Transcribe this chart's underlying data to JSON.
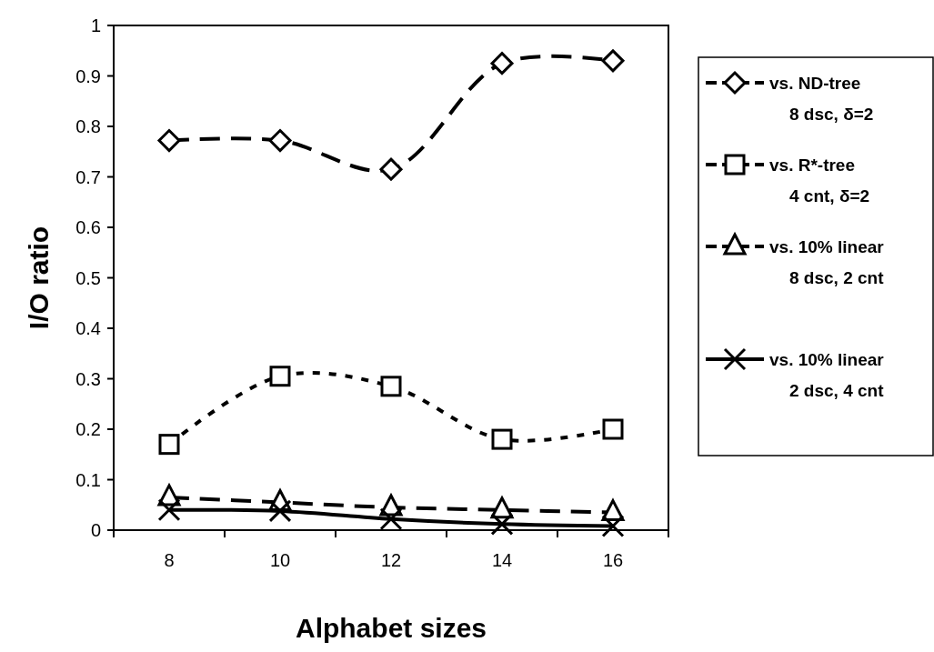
{
  "chart_data": {
    "type": "line",
    "xlabel": "Alphabet sizes",
    "ylabel": "I/O ratio",
    "categories": [
      "8",
      "10",
      "12",
      "14",
      "16"
    ],
    "ylim": [
      0,
      1
    ],
    "yticks": [
      0,
      0.1,
      0.2,
      0.3,
      0.4,
      0.5,
      0.6,
      0.7,
      0.8,
      0.9,
      1
    ],
    "grid": false,
    "legend": "right",
    "series": [
      {
        "name": "vs. ND-tree\n8 dsc, δ=2",
        "color": "#000000",
        "marker": "diamond",
        "line_style": "dashed",
        "values": [
          0.772,
          0.772,
          0.715,
          0.925,
          0.93
        ]
      },
      {
        "name": "vs. R*-tree\n4 cnt, δ=2",
        "color": "#000000",
        "marker": "square",
        "line_style": "dotted",
        "values": [
          0.17,
          0.305,
          0.285,
          0.18,
          0.2
        ]
      },
      {
        "name": "vs. 10% linear\n\n8 dsc, 2 cnt",
        "color": "#000000",
        "marker": "triangle",
        "line_style": "dashed",
        "values": [
          0.065,
          0.055,
          0.045,
          0.04,
          0.035
        ]
      },
      {
        "name": "vs. 10% linear\n\n2 dsc, 4 cnt",
        "color": "#000000",
        "marker": "cross",
        "line_style": "solid",
        "values": [
          0.04,
          0.038,
          0.022,
          0.012,
          0.008
        ]
      }
    ]
  }
}
